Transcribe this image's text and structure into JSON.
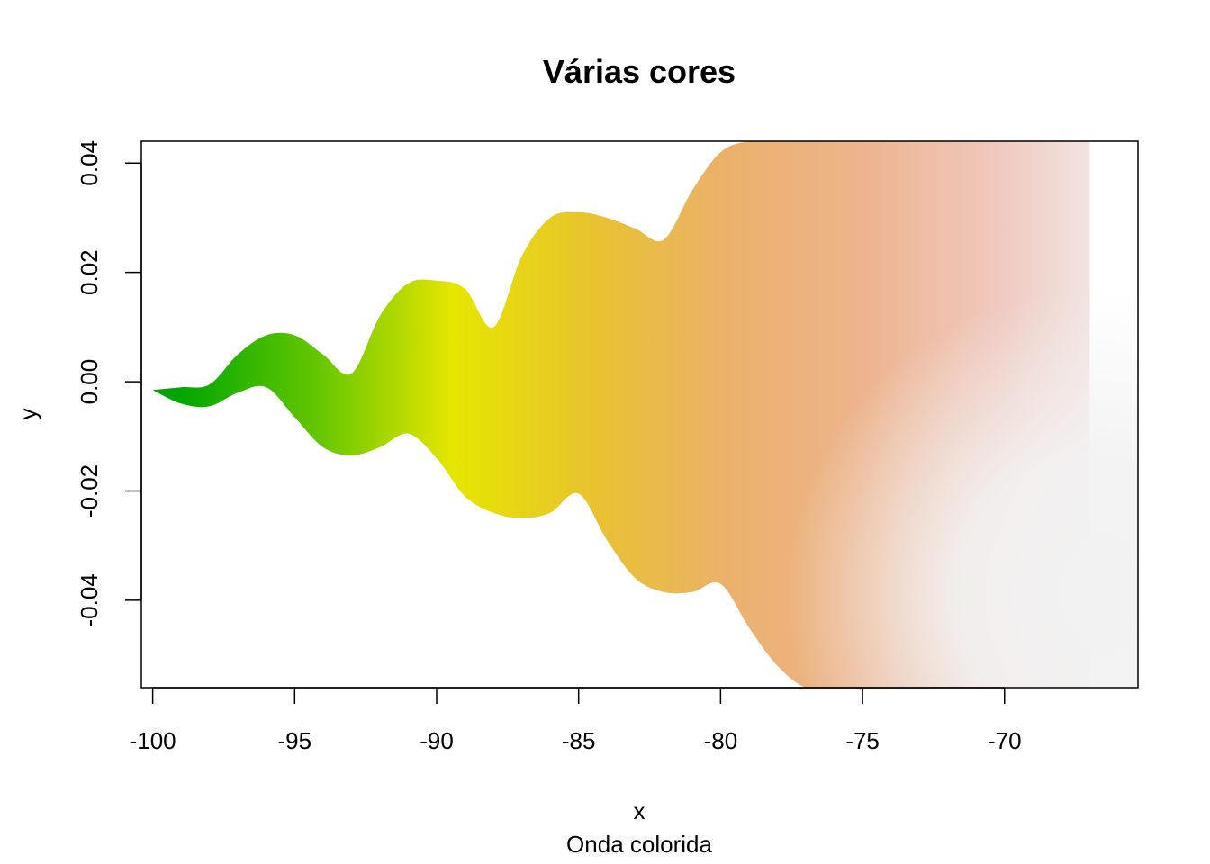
{
  "chart_data": {
    "type": "area",
    "title": "Várias cores",
    "xlabel": "x",
    "subtitle": "Onda colorida",
    "ylabel": "y",
    "xlim": [
      -100.4,
      -65.3
    ],
    "ylim": [
      -0.056,
      0.044
    ],
    "x_ticks": [
      -100,
      -95,
      -90,
      -85,
      -80,
      -75,
      -70
    ],
    "y_ticks": [
      -0.04,
      -0.02,
      0.0,
      0.02,
      0.04
    ],
    "x_tick_labels": [
      "-100",
      "-95",
      "-90",
      "-85",
      "-80",
      "-75",
      "-70"
    ],
    "y_tick_labels": [
      "-0.04",
      "-0.02",
      "0.00",
      "0.02",
      "0.04"
    ],
    "grid": false,
    "series": [
      {
        "x": [
          -100,
          -99,
          -98,
          -97,
          -96,
          -95,
          -94,
          -93,
          -92,
          -91,
          -90,
          -89,
          -88,
          -87,
          -86,
          -85,
          -84,
          -83,
          -82,
          -81,
          -80,
          -79,
          -78,
          -77,
          -76,
          -75,
          -74,
          -73,
          -72,
          -71,
          -70,
          -69,
          -68,
          -67
        ],
        "upper": [
          -0.0015,
          -0.001,
          -0.0005,
          0.005,
          0.0085,
          0.0085,
          0.005,
          0.0015,
          0.012,
          0.018,
          0.0185,
          0.017,
          0.01,
          0.023,
          0.03,
          0.031,
          0.03,
          0.028,
          0.026,
          0.035,
          0.042,
          0.044,
          0.044,
          0.044,
          0.044,
          0.044,
          0.044,
          0.044,
          0.044,
          0.044,
          0.044,
          0.044,
          0.044,
          0.044
        ],
        "lower": [
          -0.0015,
          -0.004,
          -0.0045,
          -0.002,
          -0.001,
          -0.0065,
          -0.012,
          -0.0135,
          -0.012,
          -0.0095,
          -0.014,
          -0.021,
          -0.024,
          -0.025,
          -0.024,
          -0.0205,
          -0.029,
          -0.036,
          -0.0385,
          -0.0385,
          -0.037,
          -0.045,
          -0.052,
          -0.056,
          -0.056,
          -0.056,
          -0.056,
          -0.056,
          -0.056,
          -0.056,
          -0.056,
          -0.056,
          -0.056,
          -0.056
        ]
      }
    ],
    "colors": {
      "gradient": [
        "#00a600",
        "#63c600",
        "#e6e600",
        "#e8c32e",
        "#ebb16b",
        "#edb48e",
        "#f0c9c0",
        "#f2f2f2"
      ]
    }
  }
}
